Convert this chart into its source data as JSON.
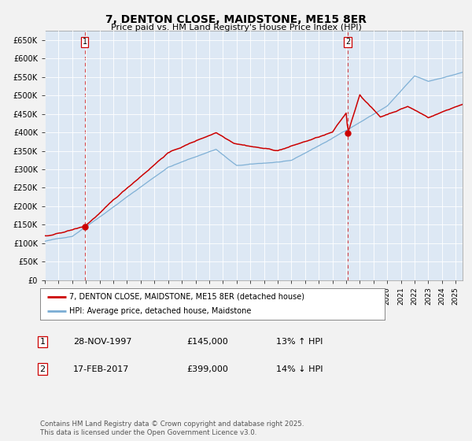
{
  "title": "7, DENTON CLOSE, MAIDSTONE, ME15 8ER",
  "subtitle": "Price paid vs. HM Land Registry's House Price Index (HPI)",
  "ylim": [
    0,
    675000
  ],
  "xlim_start": 1995.0,
  "xlim_end": 2025.5,
  "sale1_date": 1997.91,
  "sale1_price": 145000,
  "sale1_label": "1",
  "sale2_date": 2017.12,
  "sale2_price": 399000,
  "sale2_label": "2",
  "red_color": "#cc0000",
  "blue_color": "#7aadd4",
  "plot_bg_color": "#dde8f4",
  "grid_color": "#ffffff",
  "legend_label_red": "7, DENTON CLOSE, MAIDSTONE, ME15 8ER (detached house)",
  "legend_label_blue": "HPI: Average price, detached house, Maidstone",
  "table_row1": [
    "1",
    "28-NOV-1997",
    "£145,000",
    "13% ↑ HPI"
  ],
  "table_row2": [
    "2",
    "17-FEB-2017",
    "£399,000",
    "14% ↓ HPI"
  ],
  "footnote": "Contains HM Land Registry data © Crown copyright and database right 2025.\nThis data is licensed under the Open Government Licence v3.0.",
  "background_color": "#f2f2f2"
}
